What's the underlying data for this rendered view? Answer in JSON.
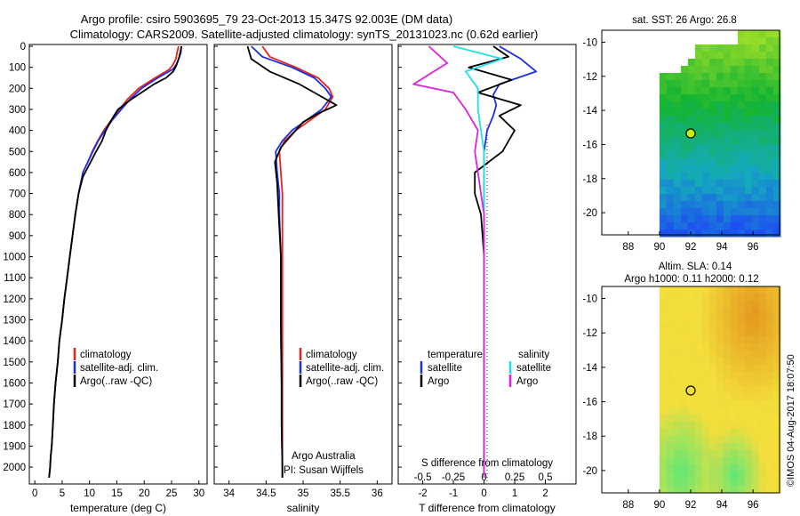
{
  "header": {
    "line1": "Argo profile: csiro 5903695_79 23-Oct-2013 15.347S 92.003E (DM data)",
    "line2": "Climatology: CARS2009. Satellite-adjusted climatology: synTS_20131023.nc (0.62d earlier)"
  },
  "colors": {
    "climatology": "#e8201a",
    "satellite": "#1a30e0",
    "argo": "#000000",
    "sal_satellite": "#20e0e8",
    "sal_argo": "#e020e0",
    "marker": "#c8f000"
  },
  "depth_axis": {
    "ticks": [
      0,
      100,
      200,
      300,
      400,
      500,
      600,
      700,
      800,
      900,
      1000,
      1100,
      1200,
      1300,
      1400,
      1500,
      1600,
      1700,
      1800,
      1900,
      2000
    ]
  },
  "legend": {
    "climatology": "climatology",
    "satellite": "satellite-adj. clim.",
    "argo": "Argo(..raw -QC)",
    "temperature_head": "temperature",
    "salinity_head": "salinity",
    "sat_label": "satellite",
    "argo_label": "Argo"
  },
  "chart_data": [
    {
      "type": "line",
      "id": "temperature",
      "xlabel": "temperature (deg C)",
      "ylabel": "",
      "xlim": [
        -1,
        31.5
      ],
      "ylim": [
        2080,
        0
      ],
      "xticks": [
        0,
        5,
        10,
        15,
        20,
        25,
        30
      ],
      "series": [
        {
          "name": "climatology",
          "x": [
            26.3,
            26.0,
            25.8,
            25.2,
            24.6,
            22.0,
            19.0,
            17.0,
            15.5,
            14.0,
            12.6,
            11.5,
            10.5,
            9.7,
            8.8,
            8.0,
            7.4,
            6.9,
            6.4,
            5.9,
            5.4,
            5.0,
            4.5,
            4.2,
            3.8,
            3.5,
            3.3,
            3.1,
            2.9,
            2.8,
            2.6
          ],
          "depth": [
            0,
            30,
            60,
            90,
            110,
            150,
            200,
            250,
            300,
            350,
            400,
            450,
            500,
            550,
            600,
            700,
            800,
            900,
            1000,
            1100,
            1200,
            1300,
            1400,
            1500,
            1600,
            1700,
            1800,
            1900,
            1950,
            2000,
            2050
          ]
        },
        {
          "name": "satellite",
          "x": [
            26.8,
            26.7,
            26.3,
            25.8,
            25.2,
            22.5,
            19.5,
            17.5,
            15.8,
            14.2,
            12.8,
            11.6,
            10.6,
            9.7,
            8.8,
            8.0,
            7.4,
            6.9,
            6.4,
            5.9,
            5.4,
            5.0,
            4.5,
            4.2,
            3.8,
            3.5,
            3.3,
            3.1,
            2.9,
            2.8,
            2.6
          ],
          "depth": [
            0,
            30,
            60,
            90,
            110,
            150,
            200,
            250,
            300,
            350,
            400,
            450,
            500,
            550,
            600,
            700,
            800,
            900,
            1000,
            1100,
            1200,
            1300,
            1400,
            1500,
            1600,
            1700,
            1800,
            1900,
            1950,
            2000,
            2050
          ]
        },
        {
          "name": "argo",
          "x": [
            26.8,
            26.6,
            26.3,
            25.9,
            25.3,
            24.0,
            21.8,
            19.5,
            17.2,
            15.2,
            14.0,
            13.0,
            12.3,
            11.2,
            10.0,
            8.8,
            8.0,
            7.4,
            6.9,
            6.4,
            5.9,
            5.4,
            5.0,
            4.5,
            4.2,
            3.8,
            3.5,
            3.3,
            3.1,
            2.9,
            2.8,
            2.6
          ],
          "depth": [
            0,
            30,
            60,
            90,
            120,
            150,
            180,
            220,
            260,
            300,
            350,
            400,
            450,
            500,
            560,
            620,
            700,
            800,
            900,
            1000,
            1100,
            1200,
            1300,
            1400,
            1500,
            1600,
            1700,
            1800,
            1900,
            1950,
            2000,
            2050
          ]
        }
      ]
    },
    {
      "type": "line",
      "id": "salinity",
      "xlabel": "salinity",
      "xlim": [
        33.8,
        36.2
      ],
      "ylim": [
        2080,
        0
      ],
      "xticks": [
        34,
        34.5,
        35,
        35.5,
        36
      ],
      "series": [
        {
          "name": "climatology",
          "x": [
            34.45,
            34.55,
            34.9,
            35.2,
            35.35,
            35.4,
            35.3,
            35.1,
            34.9,
            34.75,
            34.68,
            34.7,
            34.72,
            34.72,
            34.72,
            34.72,
            34.72,
            34.72,
            34.72,
            34.72,
            34.72
          ],
          "depth": [
            0,
            50,
            100,
            150,
            200,
            240,
            300,
            350,
            400,
            450,
            500,
            600,
            700,
            800,
            1000,
            1200,
            1400,
            1600,
            1800,
            2000,
            2050
          ]
        },
        {
          "name": "satellite",
          "x": [
            34.3,
            34.45,
            34.85,
            35.15,
            35.3,
            35.38,
            35.25,
            35.05,
            34.85,
            34.72,
            34.63,
            34.65,
            34.68,
            34.68,
            34.7,
            34.7,
            34.7,
            34.71,
            34.71,
            34.72,
            34.72
          ],
          "depth": [
            0,
            50,
            100,
            150,
            200,
            240,
            300,
            350,
            400,
            450,
            500,
            600,
            700,
            800,
            1000,
            1200,
            1400,
            1600,
            1800,
            2000,
            2050
          ]
        },
        {
          "name": "argo",
          "x": [
            34.25,
            34.3,
            34.55,
            34.95,
            35.15,
            35.35,
            35.45,
            35.2,
            35.0,
            34.85,
            34.7,
            34.62,
            34.65,
            34.67,
            34.7,
            34.7,
            34.71,
            34.71,
            34.72,
            34.72
          ],
          "depth": [
            0,
            60,
            120,
            180,
            220,
            260,
            280,
            320,
            360,
            420,
            480,
            550,
            650,
            800,
            1000,
            1300,
            1600,
            1800,
            2000,
            2050
          ]
        }
      ]
    },
    {
      "type": "line",
      "id": "difference",
      "xlabel": "T difference from climatology",
      "xlabel_top": "S difference from climatology",
      "xlim": [
        -2.8,
        3.0
      ],
      "ylim": [
        2080,
        0
      ],
      "xticks": [
        -2,
        -1,
        0,
        1,
        2
      ],
      "xticks_s": [
        -0.5,
        -0.25,
        0,
        0.25,
        0.5
      ],
      "series": [
        {
          "name": "temperature satellite",
          "x": [
            0.5,
            1.2,
            1.7,
            0.5,
            0.3,
            0.4,
            0.3,
            0.1,
            0.0,
            0.0,
            0.0,
            0.0,
            0.0,
            0.0,
            0.0,
            0.0,
            0.0,
            0.0,
            0.0
          ],
          "depth": [
            0,
            60,
            120,
            180,
            230,
            280,
            330,
            400,
            500,
            600,
            700,
            800,
            1000,
            1200,
            1400,
            1600,
            1800,
            2000,
            2050
          ]
        },
        {
          "name": "temperature argo",
          "x": [
            0.3,
            0.8,
            -0.5,
            0.9,
            -0.2,
            1.2,
            0.5,
            1.0,
            0.6,
            -0.3,
            -0.3,
            -0.1,
            0.0,
            0.0,
            0.0,
            0.0,
            0.0,
            0.0,
            0.0
          ],
          "depth": [
            0,
            50,
            100,
            160,
            220,
            280,
            330,
            400,
            500,
            600,
            700,
            800,
            1000,
            1200,
            1400,
            1600,
            1800,
            2000,
            2050
          ]
        },
        {
          "name": "salinity satellite",
          "x": [
            -1.0,
            0.6,
            -0.6,
            -0.2,
            -0.2,
            -0.1,
            0.0,
            0.0,
            0.0,
            0.0,
            0.0,
            0.0,
            0.0,
            0.0,
            0.0,
            0.0,
            0.0,
            0.0
          ],
          "depth": [
            0,
            60,
            120,
            200,
            300,
            400,
            500,
            600,
            700,
            800,
            900,
            1000,
            1200,
            1400,
            1600,
            1800,
            2000,
            2050
          ]
        },
        {
          "name": "salinity argo",
          "x": [
            -1.8,
            -1.2,
            -2.3,
            -1.0,
            -0.6,
            -0.2,
            -0.3,
            -0.2,
            -0.1,
            0.0,
            0.0,
            0.0,
            0.0,
            0.0,
            0.0,
            0.0
          ],
          "depth": [
            0,
            80,
            180,
            220,
            300,
            400,
            500,
            600,
            700,
            800,
            1000,
            1200,
            1400,
            1600,
            1800,
            2050
          ]
        }
      ]
    },
    {
      "type": "heatmap",
      "id": "sst_map",
      "title": "sat. SST: 26 Argo: 26.8",
      "xticks": [
        88,
        90,
        92,
        94,
        96
      ],
      "yticks": [
        -10,
        -12,
        -14,
        -16,
        -18,
        -20
      ],
      "xlim": [
        86.3,
        97.7
      ],
      "ylim": [
        -21.3,
        -9.3
      ],
      "profile_location": {
        "lon": 92.0,
        "lat": -15.35
      }
    },
    {
      "type": "heatmap",
      "id": "sla_map",
      "title": "Altim. SLA: 0.14",
      "subtitle": "Argo h1000: 0.11 h2000: 0.12",
      "xticks": [
        88,
        90,
        92,
        94,
        96
      ],
      "yticks": [
        -10,
        -12,
        -14,
        -16,
        -18,
        -20
      ],
      "xlim": [
        86.3,
        97.7
      ],
      "ylim": [
        -21.3,
        -9.3
      ],
      "profile_location": {
        "lon": 92.0,
        "lat": -15.35
      }
    }
  ],
  "annotations": {
    "argo_australia": "Argo Australia",
    "pi": "PI: Susan Wijffels",
    "imos_stamp": "©IMOS 04-Aug-2017 18:07:50"
  }
}
